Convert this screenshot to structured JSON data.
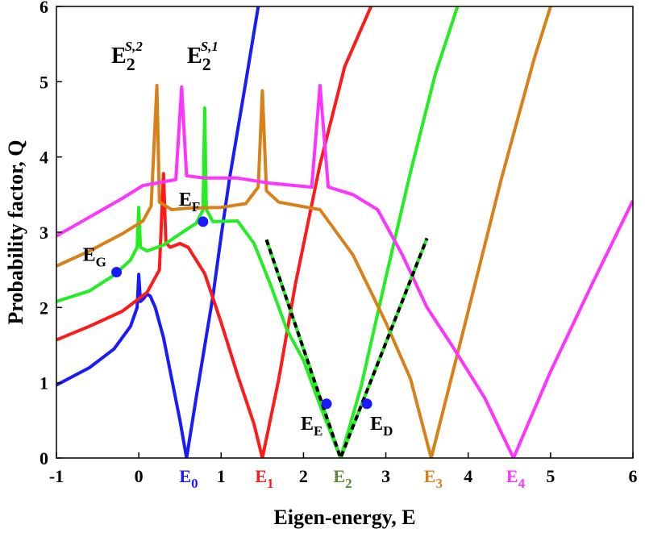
{
  "chart_data": {
    "type": "line",
    "xlabel": "Eigen-energy, E",
    "ylabel": "Probability factor, Q",
    "xlim": [
      -1,
      6
    ],
    "ylim": [
      0,
      6
    ],
    "xticks": [
      "-1",
      "0",
      "1",
      "2",
      "3",
      "4",
      "5",
      "6"
    ],
    "yticks": [
      "0",
      "1",
      "2",
      "3",
      "4",
      "5",
      "6"
    ],
    "grid": false,
    "series": [
      {
        "color": "#1a1aff",
        "points": [
          [
            -1,
            0.97
          ],
          [
            -0.6,
            1.2
          ],
          [
            -0.3,
            1.45
          ],
          [
            -0.1,
            1.75
          ],
          [
            -0.02,
            2.0
          ],
          [
            0,
            2.44
          ],
          [
            0.02,
            2.08
          ],
          [
            0.06,
            2.12
          ],
          [
            0.1,
            2.18
          ],
          [
            0.14,
            2.15
          ],
          [
            0.2,
            2.0
          ],
          [
            0.3,
            1.6
          ],
          [
            0.4,
            1.05
          ],
          [
            0.5,
            0.5
          ],
          [
            0.58,
            0.0
          ],
          [
            0.7,
            0.82
          ],
          [
            0.9,
            2.15
          ],
          [
            1.0,
            2.95
          ],
          [
            1.1,
            3.7
          ],
          [
            1.3,
            5.0
          ],
          [
            1.45,
            6.0
          ]
        ]
      },
      {
        "color": "#ff1a1a",
        "points": [
          [
            -1,
            1.57
          ],
          [
            -0.6,
            1.75
          ],
          [
            -0.2,
            1.95
          ],
          [
            0.1,
            2.2
          ],
          [
            0.25,
            2.5
          ],
          [
            0.3,
            3.78
          ],
          [
            0.33,
            2.86
          ],
          [
            0.38,
            2.8
          ],
          [
            0.5,
            2.85
          ],
          [
            0.6,
            2.8
          ],
          [
            0.8,
            2.45
          ],
          [
            1.0,
            1.8
          ],
          [
            1.2,
            1.1
          ],
          [
            1.4,
            0.45
          ],
          [
            1.5,
            0.0
          ],
          [
            1.7,
            1.05
          ],
          [
            1.9,
            2.3
          ],
          [
            2.2,
            3.9
          ],
          [
            2.5,
            5.2
          ],
          [
            2.82,
            6.0
          ]
        ]
      },
      {
        "color": "#22ee22",
        "points": [
          [
            -1,
            2.08
          ],
          [
            -0.6,
            2.22
          ],
          [
            -0.3,
            2.43
          ],
          [
            -0.1,
            2.63
          ],
          [
            -0.02,
            2.8
          ],
          [
            0,
            3.33
          ],
          [
            0.02,
            2.8
          ],
          [
            0.1,
            2.75
          ],
          [
            0.3,
            2.83
          ],
          [
            0.6,
            3.05
          ],
          [
            0.7,
            3.12
          ],
          [
            0.78,
            3.3
          ],
          [
            0.8,
            4.65
          ],
          [
            0.82,
            3.3
          ],
          [
            0.9,
            3.14
          ],
          [
            1.2,
            3.15
          ],
          [
            1.4,
            2.85
          ],
          [
            1.6,
            2.3
          ],
          [
            1.8,
            1.7
          ],
          [
            2.0,
            1.3
          ],
          [
            2.2,
            0.7
          ],
          [
            2.45,
            0.0
          ],
          [
            2.7,
            0.95
          ],
          [
            3.0,
            2.4
          ],
          [
            3.3,
            3.8
          ],
          [
            3.6,
            5.1
          ],
          [
            3.87,
            6.0
          ]
        ]
      },
      {
        "color": "#d98019",
        "points": [
          [
            -1,
            2.55
          ],
          [
            -0.6,
            2.75
          ],
          [
            -0.2,
            2.98
          ],
          [
            0.05,
            3.15
          ],
          [
            0.15,
            3.35
          ],
          [
            0.22,
            4.95
          ],
          [
            0.25,
            3.4
          ],
          [
            0.4,
            3.3
          ],
          [
            0.6,
            3.32
          ],
          [
            1.0,
            3.33
          ],
          [
            1.3,
            3.38
          ],
          [
            1.45,
            3.6
          ],
          [
            1.5,
            4.88
          ],
          [
            1.55,
            3.55
          ],
          [
            1.7,
            3.4
          ],
          [
            2.2,
            3.3
          ],
          [
            2.6,
            2.7
          ],
          [
            3.0,
            1.8
          ],
          [
            3.3,
            1.05
          ],
          [
            3.55,
            0.0
          ],
          [
            4.0,
            1.95
          ],
          [
            4.4,
            3.7
          ],
          [
            4.8,
            5.3
          ],
          [
            5.0,
            6.0
          ]
        ]
      },
      {
        "color": "#ff33ff",
        "points": [
          [
            -1,
            2.95
          ],
          [
            -0.6,
            3.2
          ],
          [
            -0.2,
            3.45
          ],
          [
            0.05,
            3.62
          ],
          [
            0.45,
            3.7
          ],
          [
            0.52,
            4.93
          ],
          [
            0.58,
            3.75
          ],
          [
            0.8,
            3.72
          ],
          [
            1.2,
            3.72
          ],
          [
            1.6,
            3.65
          ],
          [
            2.1,
            3.6
          ],
          [
            2.2,
            4.95
          ],
          [
            2.3,
            3.6
          ],
          [
            2.6,
            3.5
          ],
          [
            2.9,
            3.3
          ],
          [
            3.2,
            2.7
          ],
          [
            3.5,
            2.0
          ],
          [
            3.8,
            1.5
          ],
          [
            4.2,
            0.8
          ],
          [
            4.55,
            0.0
          ],
          [
            5.0,
            1.15
          ],
          [
            5.5,
            2.3
          ],
          [
            6.0,
            3.42
          ]
        ]
      },
      {
        "color": "#000000",
        "dashed": true,
        "points": [
          [
            1.55,
            2.9
          ],
          [
            2.45,
            0.0
          ],
          [
            3.5,
            2.92
          ]
        ]
      }
    ],
    "markers": [
      {
        "label": "E",
        "sub": "G",
        "x": -0.27,
        "y": 2.47
      },
      {
        "label": "E",
        "sub": "F",
        "x": 0.78,
        "y": 3.14
      },
      {
        "label": "E",
        "sub": "E",
        "x": 2.28,
        "y": 0.72
      },
      {
        "label": "E",
        "sub": "D",
        "x": 2.77,
        "y": 0.72
      }
    ],
    "marker_color": "#1a1aff",
    "special_tick_labels": [
      {
        "label": "E",
        "sub": "0",
        "x": 0.58,
        "color": "#1a1aff"
      },
      {
        "label": "E",
        "sub": "1",
        "x": 1.5,
        "color": "#ff1a1a"
      },
      {
        "label": "E",
        "sub": "2",
        "x": 2.45,
        "color": "#5a8a3a"
      },
      {
        "label": "E",
        "sub": "3",
        "x": 3.55,
        "color": "#d98019"
      },
      {
        "label": "E",
        "sub": "4",
        "x": 4.55,
        "color": "#ff33ff"
      }
    ],
    "annotations": [
      {
        "label": "E",
        "sub": "2",
        "sup": "S,2"
      },
      {
        "label": "E",
        "sub": "2",
        "sup": "S,1"
      }
    ]
  }
}
